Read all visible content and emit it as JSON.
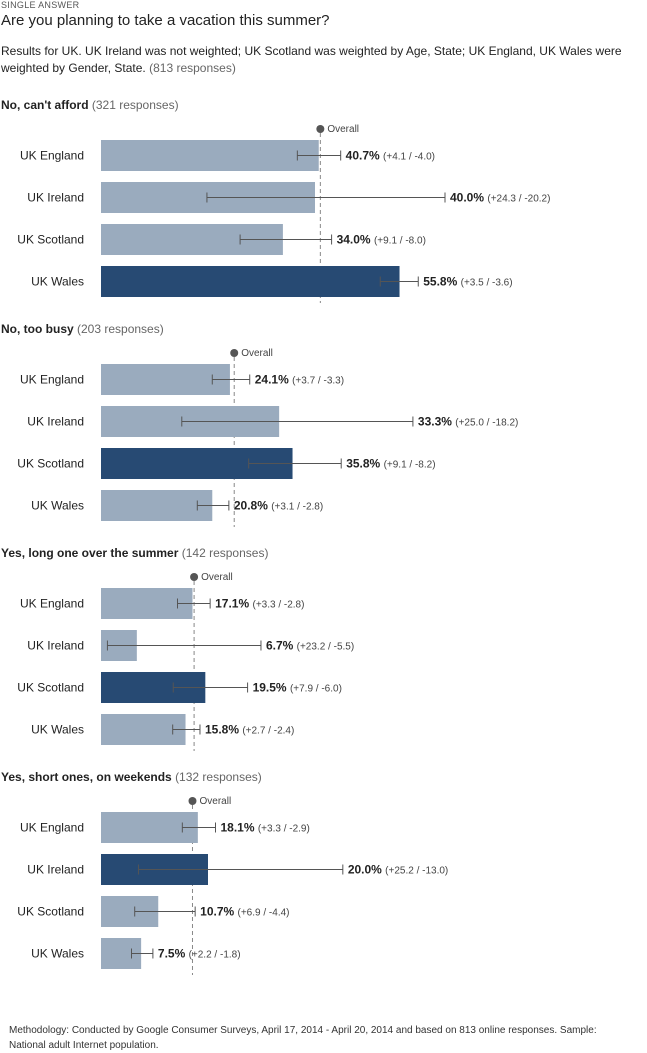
{
  "header": {
    "eyebrow": "SINGLE ANSWER",
    "question": "Are you planning to take a vacation this summer?",
    "description": "Results for UK. UK Ireland was not weighted; UK Scotland was weighted by Age, State; UK England, UK Wales were weighted by Gender, State.",
    "total_responses": "(813 responses)"
  },
  "footer": {
    "methodology": "Methodology: Conducted by Google Consumer Surveys, April 17, 2014 - April 20, 2014 and based on 813 online responses. Sample: National adult Internet population."
  },
  "colors": {
    "bar_light": "#9aabbe",
    "bar_dark": "#274a73",
    "error_bar": "#555555",
    "overall_line": "#888888",
    "overall_dot": "#555555"
  },
  "chart_data": [
    {
      "type": "bar",
      "title": "No, can't afford",
      "responses": "(321 responses)",
      "overall_label": "Overall",
      "overall": 41.0,
      "categories": [
        "UK England",
        "UK Ireland",
        "UK Scotland",
        "UK Wales"
      ],
      "values": [
        40.7,
        40.0,
        34.0,
        55.8
      ],
      "value_labels": [
        "40.7%",
        "40.0%",
        "34.0%",
        "55.8%"
      ],
      "errors_plus": [
        4.1,
        24.3,
        9.1,
        3.5
      ],
      "errors_minus": [
        4.0,
        20.2,
        8.0,
        3.6
      ],
      "error_labels": [
        "(+4.1 / -4.0)",
        "(+24.3 / -20.2)",
        "(+9.1 / -8.0)",
        "(+3.5 / -3.6)"
      ],
      "highlighted": [
        false,
        false,
        false,
        true
      ]
    },
    {
      "type": "bar",
      "title": "No, too busy",
      "responses": "(203 responses)",
      "overall_label": "Overall",
      "overall": 24.9,
      "categories": [
        "UK England",
        "UK Ireland",
        "UK Scotland",
        "UK Wales"
      ],
      "values": [
        24.1,
        33.3,
        35.8,
        20.8
      ],
      "value_labels": [
        "24.1%",
        "33.3%",
        "35.8%",
        "20.8%"
      ],
      "errors_plus": [
        3.7,
        25.0,
        9.1,
        3.1
      ],
      "errors_minus": [
        3.3,
        18.2,
        8.2,
        2.8
      ],
      "error_labels": [
        "(+3.7 / -3.3)",
        "(+25.0 / -18.2)",
        "(+9.1 / -8.2)",
        "(+3.1 / -2.8)"
      ],
      "highlighted": [
        false,
        false,
        true,
        false
      ]
    },
    {
      "type": "bar",
      "title": "Yes, long one over the summer",
      "responses": "(142 responses)",
      "overall_label": "Overall",
      "overall": 17.4,
      "categories": [
        "UK England",
        "UK Ireland",
        "UK Scotland",
        "UK Wales"
      ],
      "values": [
        17.1,
        6.7,
        19.5,
        15.8
      ],
      "value_labels": [
        "17.1%",
        "6.7%",
        "19.5%",
        "15.8%"
      ],
      "errors_plus": [
        3.3,
        23.2,
        7.9,
        2.7
      ],
      "errors_minus": [
        2.8,
        5.5,
        6.0,
        2.4
      ],
      "error_labels": [
        "(+3.3 / -2.8)",
        "(+23.2 / -5.5)",
        "(+7.9 / -6.0)",
        "(+2.7 / -2.4)"
      ],
      "highlighted": [
        false,
        false,
        true,
        false
      ]
    },
    {
      "type": "bar",
      "title": "Yes, short ones, on weekends",
      "responses": "(132 responses)",
      "overall_label": "Overall",
      "overall": 17.1,
      "categories": [
        "UK England",
        "UK Ireland",
        "UK Scotland",
        "UK Wales"
      ],
      "values": [
        18.1,
        20.0,
        10.7,
        7.5
      ],
      "value_labels": [
        "18.1%",
        "20.0%",
        "10.7%",
        "7.5%"
      ],
      "errors_plus": [
        3.3,
        25.2,
        6.9,
        2.2
      ],
      "errors_minus": [
        2.9,
        13.0,
        4.4,
        1.8
      ],
      "error_labels": [
        "(+3.3 / -2.9)",
        "(+25.2 / -13.0)",
        "(+6.9 / -4.4)",
        "(+2.2 / -1.8)"
      ],
      "highlighted": [
        false,
        true,
        false,
        false
      ]
    }
  ]
}
